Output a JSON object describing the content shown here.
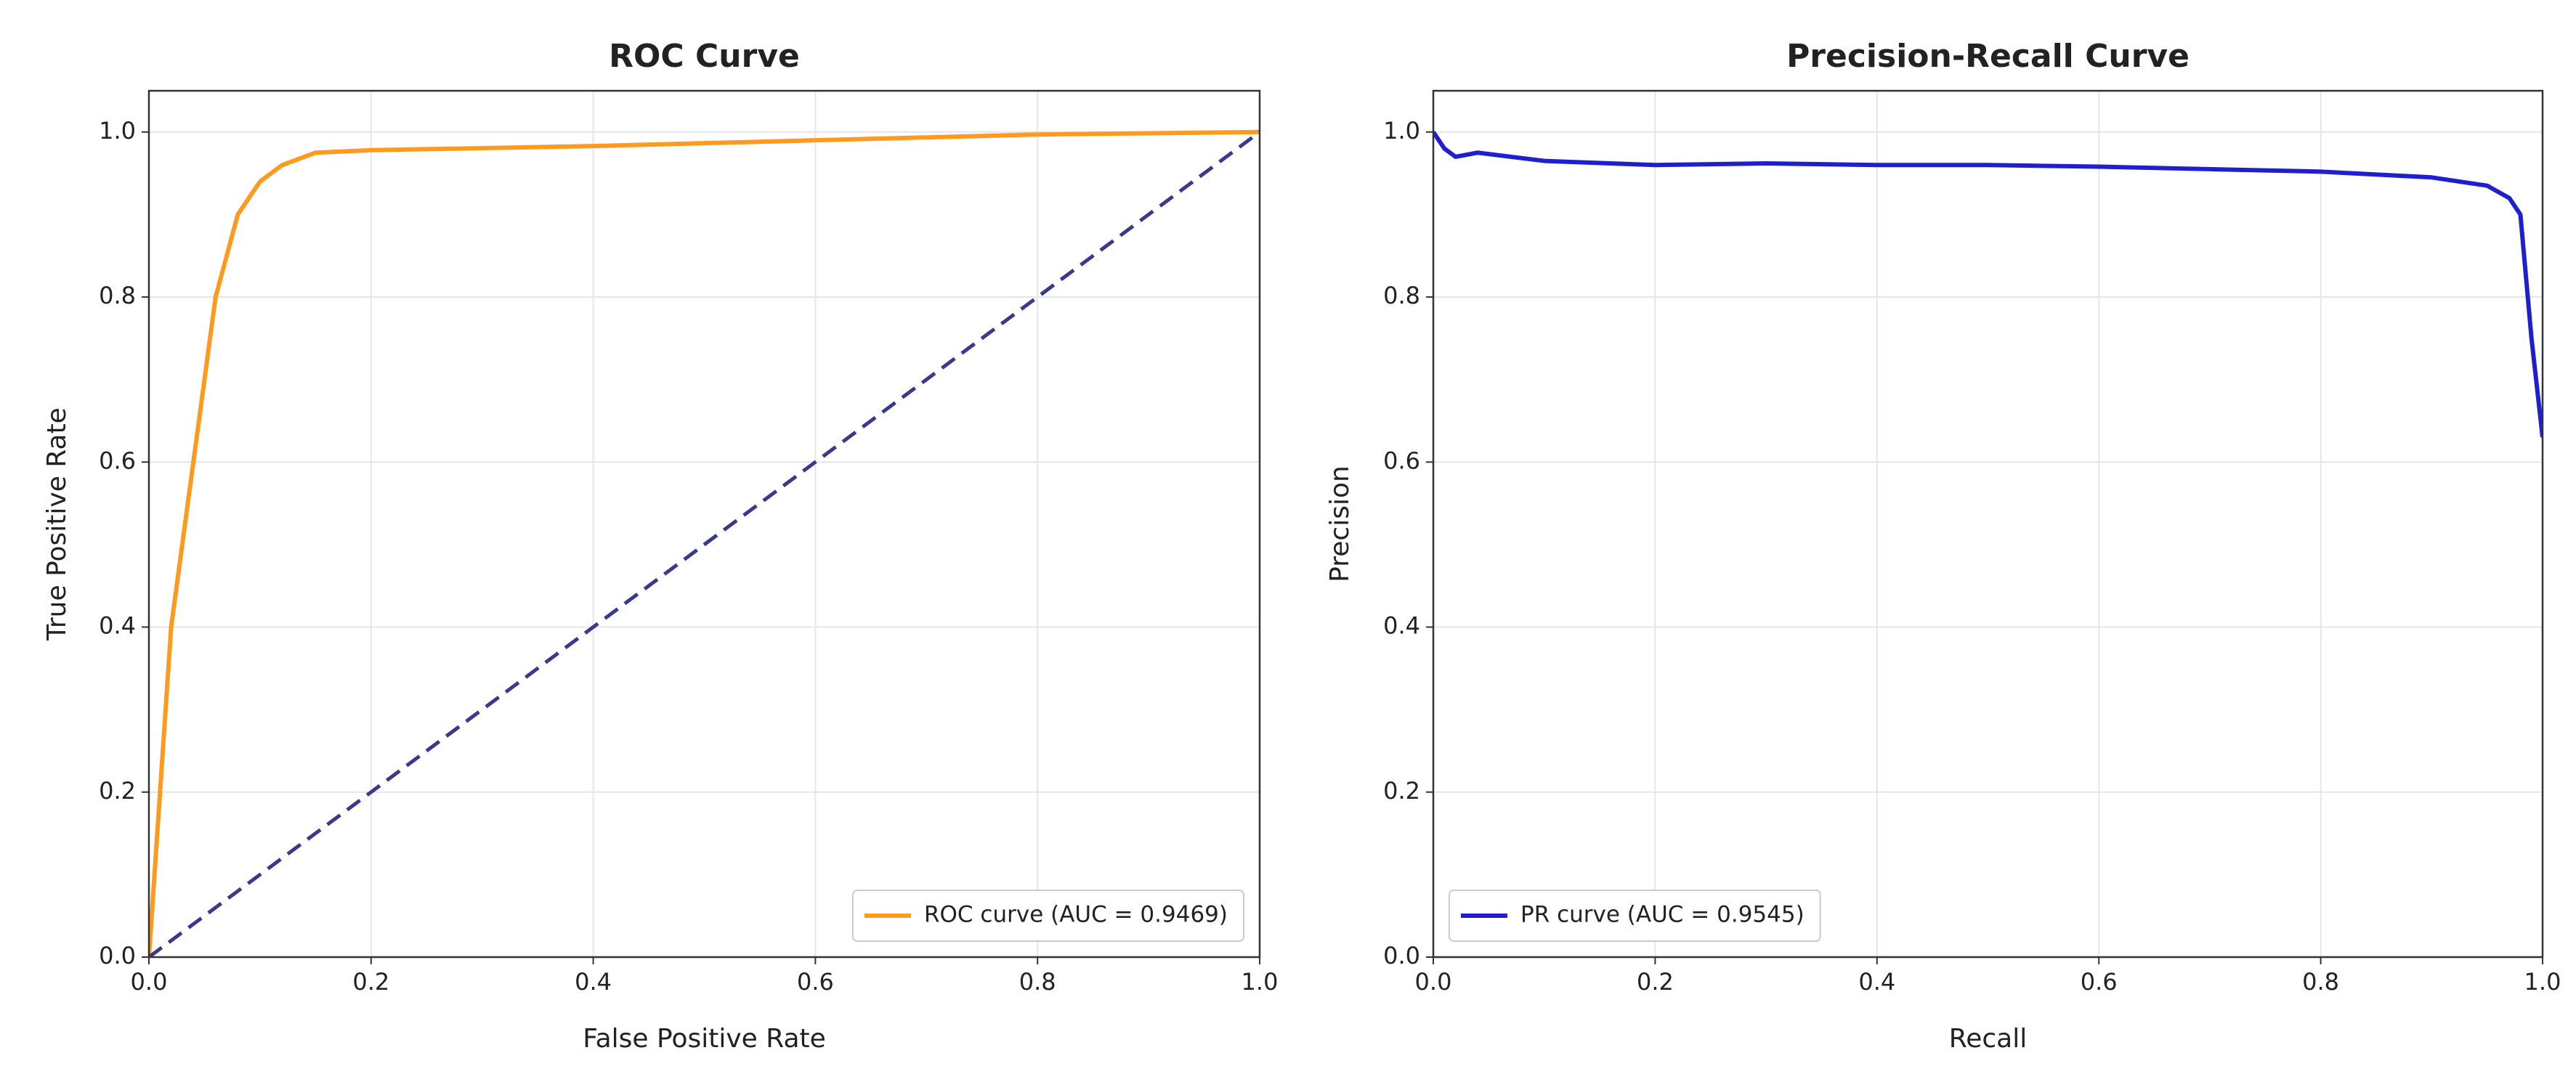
{
  "chart_data": [
    {
      "type": "line",
      "title": "ROC Curve",
      "x_label": "False Positive Rate",
      "y_label": "True Positive Rate",
      "xlim": [
        0,
        1
      ],
      "ylim": [
        0,
        1.05
      ],
      "xticks": [
        {
          "value": 0,
          "label": "0.0"
        },
        {
          "value": 0.2,
          "label": "0.2"
        },
        {
          "value": 0.4,
          "label": "0.4"
        },
        {
          "value": 0.6,
          "label": "0.6"
        },
        {
          "value": 0.8,
          "label": "0.8"
        },
        {
          "value": 1,
          "label": "1.0"
        }
      ],
      "yticks": [
        {
          "value": 0,
          "label": "0.0"
        },
        {
          "value": 0.2,
          "label": "0.2"
        },
        {
          "value": 0.4,
          "label": "0.4"
        },
        {
          "value": 0.6,
          "label": "0.6"
        },
        {
          "value": 0.8,
          "label": "0.8"
        },
        {
          "value": 1,
          "label": "1.0"
        }
      ],
      "grid": true,
      "legend": "lower right",
      "series": [
        {
          "name": "ROC curve (AUC = 0.9469)",
          "color": "#ff9a1f",
          "linestyle": "solid",
          "x": [
            0,
            0.01,
            0.02,
            0.04,
            0.06,
            0.08,
            0.1,
            0.12,
            0.15,
            0.2,
            0.4,
            0.6,
            0.8,
            1.0
          ],
          "values": [
            0,
            0.2,
            0.4,
            0.6,
            0.8,
            0.9,
            0.94,
            0.96,
            0.975,
            0.978,
            0.983,
            0.99,
            0.997,
            1.0
          ]
        },
        {
          "color": "#3a3a8c",
          "linestyle": "dashed",
          "x": [
            0,
            1
          ],
          "values": [
            0,
            1
          ]
        }
      ]
    },
    {
      "type": "line",
      "title": "Precision-Recall Curve",
      "x_label": "Recall",
      "y_label": "Precision",
      "xlim": [
        0,
        1
      ],
      "ylim": [
        0,
        1.05
      ],
      "xticks": [
        {
          "value": 0,
          "label": "0.0"
        },
        {
          "value": 0.2,
          "label": "0.2"
        },
        {
          "value": 0.4,
          "label": "0.4"
        },
        {
          "value": 0.6,
          "label": "0.6"
        },
        {
          "value": 0.8,
          "label": "0.8"
        },
        {
          "value": 1,
          "label": "1.0"
        }
      ],
      "yticks": [
        {
          "value": 0,
          "label": "0.0"
        },
        {
          "value": 0.2,
          "label": "0.2"
        },
        {
          "value": 0.4,
          "label": "0.4"
        },
        {
          "value": 0.6,
          "label": "0.6"
        },
        {
          "value": 0.8,
          "label": "0.8"
        },
        {
          "value": 1,
          "label": "1.0"
        }
      ],
      "grid": true,
      "legend": "lower left",
      "series": [
        {
          "name": "PR curve (AUC = 0.9545)",
          "color": "#1f1fd0",
          "linestyle": "solid",
          "x": [
            0,
            0.005,
            0.01,
            0.02,
            0.04,
            0.1,
            0.2,
            0.3,
            0.4,
            0.5,
            0.6,
            0.7,
            0.8,
            0.9,
            0.95,
            0.97,
            0.98,
            0.99,
            1.0
          ],
          "values": [
            1.0,
            0.99,
            0.98,
            0.97,
            0.975,
            0.965,
            0.96,
            0.962,
            0.96,
            0.96,
            0.958,
            0.955,
            0.952,
            0.945,
            0.935,
            0.92,
            0.9,
            0.75,
            0.63
          ]
        }
      ]
    }
  ]
}
